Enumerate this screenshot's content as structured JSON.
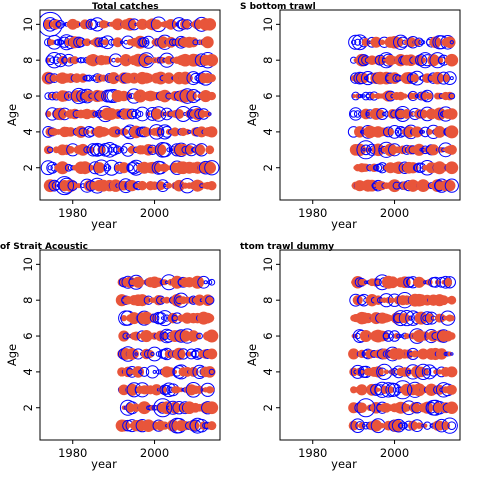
{
  "figure": {
    "colors": {
      "positive": "#e8553a",
      "negative": "#0000ff",
      "frame": "#000000"
    },
    "shared_xlabel": "year",
    "shared_ylabel": "Age"
  },
  "chart_data": [
    {
      "type": "scatter",
      "subtype": "bubble-residuals",
      "title": "Total catches",
      "xlabel": "year",
      "ylabel": "Age",
      "xticks": [
        1980,
        2000
      ],
      "yticks": [
        2,
        4,
        6,
        8,
        10
      ],
      "xlim": [
        1972,
        2016
      ],
      "ylim": [
        0.2,
        10.8
      ],
      "years": [
        1974,
        2014
      ],
      "ages": [
        1,
        10
      ],
      "legend": "none"
    },
    {
      "type": "scatter",
      "subtype": "bubble-residuals",
      "title": "S bottom trawl",
      "xlabel": "year",
      "ylabel": "Age",
      "xticks": [
        1980,
        2000
      ],
      "yticks": [
        2,
        4,
        6,
        8,
        10
      ],
      "xlim": [
        1972,
        2016
      ],
      "ylim": [
        0.2,
        10.8
      ],
      "years": [
        1990,
        2014
      ],
      "ages": [
        1,
        9
      ],
      "legend": "none"
    },
    {
      "type": "scatter",
      "subtype": "bubble-residuals",
      "title": "of Strait Acoustic",
      "xlabel": "year",
      "ylabel": "Age",
      "xticks": [
        1980,
        2000
      ],
      "yticks": [
        2,
        4,
        6,
        8,
        10
      ],
      "xlim": [
        1972,
        2016
      ],
      "ylim": [
        0.2,
        10.8
      ],
      "years": [
        1992,
        2014
      ],
      "ages": [
        1,
        9
      ],
      "legend": "none"
    },
    {
      "type": "scatter",
      "subtype": "bubble-residuals",
      "title": "ttom trawl dummy",
      "xlabel": "year",
      "ylabel": "Age",
      "xticks": [
        1980,
        2000
      ],
      "yticks": [
        2,
        4,
        6,
        8,
        10
      ],
      "xlim": [
        1972,
        2016
      ],
      "ylim": [
        0.2,
        10.8
      ],
      "years": [
        1990,
        2014
      ],
      "ages": [
        1,
        9
      ],
      "legend": "none"
    }
  ]
}
